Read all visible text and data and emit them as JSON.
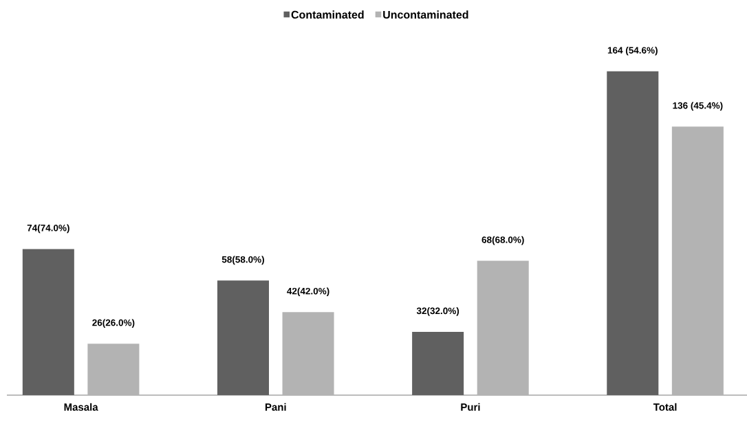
{
  "chart_data": {
    "type": "bar",
    "categories": [
      "Masala",
      "Pani",
      "Puri",
      "Total"
    ],
    "series": [
      {
        "name": "Contaminated",
        "color": "#606060",
        "values": [
          74,
          58,
          32,
          164
        ],
        "value_labels": [
          "74(74.0%)",
          "58(58.0%)",
          "32(32.0%)",
          "164 (54.6%)"
        ]
      },
      {
        "name": "Uncontaminated",
        "color": "#b3b3b3",
        "values": [
          26,
          42,
          68,
          136
        ],
        "value_labels": [
          "26(26.0%)",
          "42(42.0%)",
          "68(68.0%)",
          "136 (45.4%)"
        ]
      }
    ],
    "legend": "top"
  }
}
